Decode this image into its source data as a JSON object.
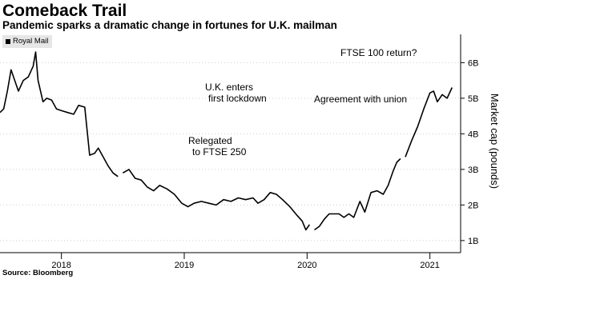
{
  "header": {
    "title": "Comeback Trail",
    "subtitle": "Pandemic sparks a dramatic change in fortunes for U.K. mailman"
  },
  "footer": {
    "source": "Source: Bloomberg"
  },
  "colors": {
    "line": "#000000",
    "grid": "#cfcfcf",
    "legend_bg": "#e6e6e6"
  },
  "chart_data": {
    "type": "line",
    "title": "Comeback Trail",
    "subtitle": "Pandemic sparks a dramatic change in fortunes for U.K. mailman",
    "ylabel": "Market cap (pounds)",
    "xlabel": "",
    "y_axis_side": "right",
    "y_unit": "billion GBP",
    "ylim": [
      0.75,
      6.75
    ],
    "xlim": [
      2017.5,
      2021.25
    ],
    "grid": "dotted horizontal",
    "legend": {
      "placement": "top-left",
      "entries": [
        "Royal Mail"
      ]
    },
    "x_ticks": [
      {
        "value": 2018.0,
        "label": "2018"
      },
      {
        "value": 2019.0,
        "label": "2019"
      },
      {
        "value": 2020.0,
        "label": "2020"
      },
      {
        "value": 2021.0,
        "label": "2021"
      }
    ],
    "y_ticks": [
      {
        "value": 1,
        "label": "1B"
      },
      {
        "value": 2,
        "label": "2B"
      },
      {
        "value": 3,
        "label": "3B"
      },
      {
        "value": 4,
        "label": "4B"
      },
      {
        "value": 5,
        "label": "5B"
      },
      {
        "value": 6,
        "label": "6B"
      }
    ],
    "annotations": [
      {
        "lines": [
          "Relegated",
          "to FTSE 250"
        ]
      },
      {
        "lines": [
          "U.K. enters",
          "first lockdown"
        ]
      },
      {
        "lines": [
          "Agreement with union"
        ]
      },
      {
        "lines": [
          "FTSE 100 return?"
        ]
      }
    ],
    "series": [
      {
        "name": "Royal Mail",
        "segments": [
          [
            [
              2017.5,
              4.6
            ],
            [
              2017.53,
              4.7
            ],
            [
              2017.56,
              5.2
            ],
            [
              2017.59,
              5.8
            ],
            [
              2017.62,
              5.5
            ],
            [
              2017.65,
              5.2
            ],
            [
              2017.69,
              5.5
            ],
            [
              2017.73,
              5.6
            ],
            [
              2017.77,
              5.9
            ],
            [
              2017.79,
              6.3
            ],
            [
              2017.81,
              5.5
            ],
            [
              2017.85,
              4.9
            ],
            [
              2017.88,
              5.0
            ],
            [
              2017.92,
              4.95
            ],
            [
              2017.96,
              4.7
            ],
            [
              2018.0,
              4.65
            ],
            [
              2018.05,
              4.6
            ],
            [
              2018.1,
              4.55
            ],
            [
              2018.14,
              4.8
            ],
            [
              2018.19,
              4.75
            ],
            [
              2018.23,
              3.4
            ],
            [
              2018.27,
              3.45
            ],
            [
              2018.3,
              3.6
            ],
            [
              2018.34,
              3.35
            ],
            [
              2018.38,
              3.1
            ],
            [
              2018.42,
              2.9
            ],
            [
              2018.46,
              2.8
            ]
          ],
          [
            [
              2018.5,
              2.9
            ],
            [
              2018.55,
              3.0
            ],
            [
              2018.6,
              2.75
            ],
            [
              2018.65,
              2.7
            ],
            [
              2018.7,
              2.5
            ],
            [
              2018.75,
              2.4
            ],
            [
              2018.8,
              2.55
            ],
            [
              2018.86,
              2.45
            ],
            [
              2018.92,
              2.3
            ],
            [
              2018.98,
              2.05
            ],
            [
              2019.03,
              1.95
            ],
            [
              2019.08,
              2.05
            ],
            [
              2019.14,
              2.1
            ],
            [
              2019.2,
              2.05
            ],
            [
              2019.26,
              2.0
            ],
            [
              2019.32,
              2.15
            ],
            [
              2019.38,
              2.1
            ],
            [
              2019.44,
              2.2
            ],
            [
              2019.5,
              2.15
            ],
            [
              2019.56,
              2.2
            ],
            [
              2019.6,
              2.05
            ],
            [
              2019.65,
              2.15
            ],
            [
              2019.7,
              2.35
            ],
            [
              2019.75,
              2.3
            ],
            [
              2019.8,
              2.15
            ],
            [
              2019.86,
              1.95
            ],
            [
              2019.92,
              1.7
            ],
            [
              2019.96,
              1.55
            ],
            [
              2019.99,
              1.3
            ],
            [
              2020.02,
              1.45
            ]
          ],
          [
            [
              2020.06,
              1.3
            ],
            [
              2020.1,
              1.4
            ],
            [
              2020.14,
              1.6
            ],
            [
              2020.18,
              1.75
            ],
            [
              2020.22,
              1.75
            ],
            [
              2020.26,
              1.75
            ],
            [
              2020.3,
              1.65
            ],
            [
              2020.34,
              1.75
            ],
            [
              2020.38,
              1.65
            ],
            [
              2020.43,
              2.1
            ],
            [
              2020.47,
              1.8
            ],
            [
              2020.52,
              2.35
            ],
            [
              2020.57,
              2.4
            ],
            [
              2020.62,
              2.3
            ],
            [
              2020.66,
              2.55
            ],
            [
              2020.7,
              2.95
            ],
            [
              2020.73,
              3.2
            ],
            [
              2020.76,
              3.3
            ]
          ],
          [
            [
              2020.8,
              3.35
            ],
            [
              2020.85,
              3.8
            ],
            [
              2020.9,
              4.2
            ],
            [
              2020.95,
              4.7
            ],
            [
              2021.0,
              5.15
            ],
            [
              2021.03,
              5.2
            ],
            [
              2021.06,
              4.9
            ],
            [
              2021.1,
              5.1
            ],
            [
              2021.14,
              5.0
            ],
            [
              2021.18,
              5.3
            ]
          ]
        ]
      }
    ]
  }
}
